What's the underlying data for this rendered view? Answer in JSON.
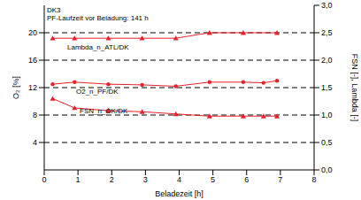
{
  "chart_data": {
    "type": "line",
    "annotations": [
      "DK3",
      "PF-Laufzeit vor Beladung: 141 h"
    ],
    "x_label": "Beladezeit [h]",
    "y_label": "O₂ [%]",
    "y2_label": "FSN [-], Lambda [-]",
    "xlim": [
      0,
      8
    ],
    "xticks": [
      0,
      1,
      2,
      3,
      4,
      5,
      6,
      7,
      8
    ],
    "ylim": [
      0,
      24
    ],
    "yticks": [
      4,
      8,
      12,
      16,
      20
    ],
    "y2lim": [
      0,
      3
    ],
    "y2ticks": [
      {
        "value": 0,
        "label": "0,0"
      },
      {
        "value": 0.5,
        "label": "0,5"
      },
      {
        "value": 1,
        "label": "1,0"
      },
      {
        "value": 1.5,
        "label": "1,5"
      },
      {
        "value": 2,
        "label": "2,0"
      },
      {
        "value": 2.5,
        "label": "2,5"
      },
      {
        "value": 3,
        "label": "3,0"
      }
    ],
    "grid": true,
    "series": [
      {
        "name": "Lambda_n_ATL/DK",
        "color": "#e8202a",
        "marker": "triangle",
        "axis": "y2",
        "x": [
          0.25,
          0.9,
          1.9,
          2.9,
          3.9,
          4.9,
          5.9,
          6.9
        ],
        "values": [
          2.4,
          2.4,
          2.4,
          2.4,
          2.4,
          2.5,
          2.5,
          2.5
        ]
      },
      {
        "name": "O2_n_PF/DK",
        "color": "#e8202a",
        "marker": "circle",
        "x": [
          0.25,
          0.9,
          1.9,
          2.9,
          3.9,
          4.9,
          5.9,
          6.5,
          6.9
        ],
        "values": [
          12.5,
          12.8,
          12.5,
          12.4,
          12.2,
          12.8,
          12.8,
          12.7,
          13.0
        ]
      },
      {
        "name": "FSN_n_OK/DK",
        "color": "#e8202a",
        "marker": "triangle",
        "axis": "y2",
        "x": [
          0.25,
          0.9,
          1.9,
          2.9,
          3.9,
          4.9,
          5.9,
          6.5,
          6.9
        ],
        "values": [
          1.3,
          1.13,
          1.08,
          1.06,
          1.02,
          0.98,
          0.98,
          0.98,
          0.98
        ]
      }
    ]
  }
}
